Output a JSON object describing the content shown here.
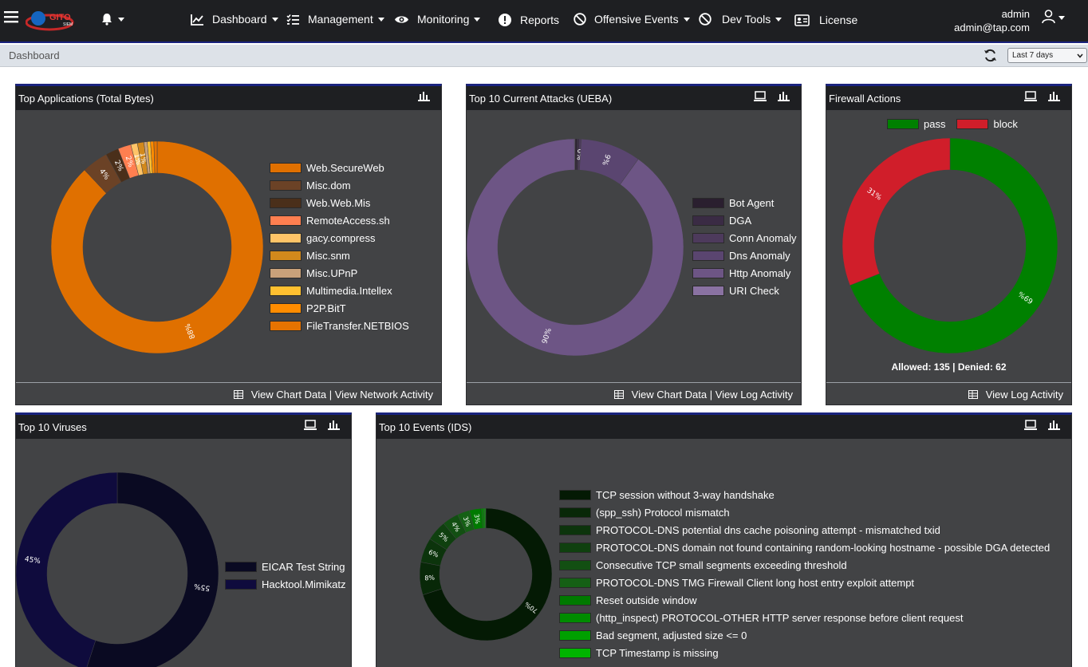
{
  "app": {
    "logo_text": "GITO",
    "logo_sub": "SIEM"
  },
  "nav": {
    "items": [
      {
        "label": "Dashboard",
        "icon": "line-chart-icon"
      },
      {
        "label": "Management",
        "icon": "checklist-icon"
      },
      {
        "label": "Monitoring",
        "icon": "eye-icon"
      },
      {
        "label": "Reports",
        "icon": "exclamation-circle-icon"
      },
      {
        "label": "Offensive Events",
        "icon": "ban-icon"
      },
      {
        "label": "Dev Tools",
        "icon": "ban-icon"
      },
      {
        "label": "License",
        "icon": "id-card-icon"
      }
    ],
    "user": {
      "name": "admin",
      "email": "admin@tap.com"
    }
  },
  "breadcrumb": "Dashboard",
  "time_range": "Last 7 days",
  "colors": {
    "navbar": "#1e1f22",
    "accent": "#1a237e",
    "panel_bg": "#424345"
  },
  "panels": {
    "top_apps": {
      "title": "Top Applications (Total Bytes)",
      "footer": "View Chart Data | View Network Activity",
      "chart_data": {
        "type": "pie",
        "variant": "donut",
        "categories": [
          "Web.SecureWeb",
          "Misc.dom",
          "Web.Web.Mis",
          "RemoteAccess.sh",
          "gacy.compress",
          "Misc.snm",
          "Misc.UPnP",
          "Multimedia.Intellex",
          "P2P.BitT",
          "FileTransfer.NETBIOS"
        ],
        "values": [
          88,
          4,
          2,
          2,
          1,
          1,
          0.5,
          0.5,
          0.5,
          0.5
        ],
        "slice_labels": [
          "88%",
          "4%",
          "2%",
          "2%",
          "1%",
          "1%",
          "",
          "",
          "",
          ""
        ],
        "colors": [
          "#e07000",
          "#6b4226",
          "#4a2f1a",
          "#ff7f50",
          "#ffc468",
          "#d2891c",
          "#c9a17a",
          "#ffc030",
          "#ff8c00",
          "#e67300"
        ],
        "legend": "right"
      }
    },
    "top_attacks": {
      "title": "Top 10 Current Attacks (UEBA)",
      "footer": "View Chart Data | View Log Activity",
      "chart_data": {
        "type": "pie",
        "variant": "donut",
        "categories": [
          "Bot Agent",
          "DGA",
          "Conn Anomaly",
          "Dns Anomaly",
          "Http Anomaly",
          "URI Check"
        ],
        "values": [
          0.3,
          0.3,
          0.3,
          9,
          90,
          0.1
        ],
        "slice_labels": [
          "",
          "",
          "0%",
          "9%",
          "90%",
          ""
        ],
        "colors": [
          "#2a1f2f",
          "#3a2b44",
          "#4d3a5c",
          "#5a4570",
          "#6d5585",
          "#8a72a2"
        ],
        "legend": "right"
      }
    },
    "firewall": {
      "title": "Firewall Actions",
      "footer": "View Log Activity",
      "summary": "Allowed: 135 | Denied: 62",
      "chart_data": {
        "type": "pie",
        "variant": "donut",
        "categories": [
          "pass",
          "block"
        ],
        "values": [
          69,
          31
        ],
        "slice_labels": [
          "69%",
          "31%"
        ],
        "colors": [
          "#008000",
          "#d01e2a"
        ],
        "legend": "top"
      }
    },
    "viruses": {
      "title": "Top 10 Viruses",
      "chart_data": {
        "type": "pie",
        "variant": "donut",
        "categories": [
          "EICAR Test String",
          "Hacktool.Mimikatz"
        ],
        "values": [
          55,
          45
        ],
        "slice_labels": [
          "55%",
          "45%"
        ],
        "colors": [
          "#0a0a22",
          "#0f0b3d"
        ],
        "legend": "right"
      }
    },
    "ids_events": {
      "title": "Top 10 Events (IDS)",
      "chart_data": {
        "type": "pie",
        "variant": "donut",
        "categories": [
          "TCP session without 3-way handshake",
          "(spp_ssh) Protocol mismatch",
          "PROTOCOL-DNS potential dns cache poisoning attempt - mismatched txid",
          "PROTOCOL-DNS domain not found containing random-looking hostname - possible DGA detected",
          "Consecutive TCP small segments exceeding threshold",
          "PROTOCOL-DNS TMG Firewall Client long host entry exploit attempt",
          "Reset outside window",
          "(http_inspect) PROTOCOL-OTHER HTTP server response before client request",
          "Bad segment, adjusted size <= 0",
          "TCP Timestamp is missing"
        ],
        "values": [
          70,
          8,
          6,
          5,
          4,
          3,
          3,
          0.5,
          0.3,
          0.2
        ],
        "slice_labels": [
          "70%",
          "8%",
          "6%",
          "5%",
          "4%",
          "3%",
          "3%",
          "",
          "",
          ""
        ],
        "colors": [
          "#041a04",
          "#082808",
          "#0c340c",
          "#0f400f",
          "#124f12",
          "#156015",
          "#007a00",
          "#008c00",
          "#00a000",
          "#00b400"
        ],
        "legend": "right"
      }
    }
  }
}
